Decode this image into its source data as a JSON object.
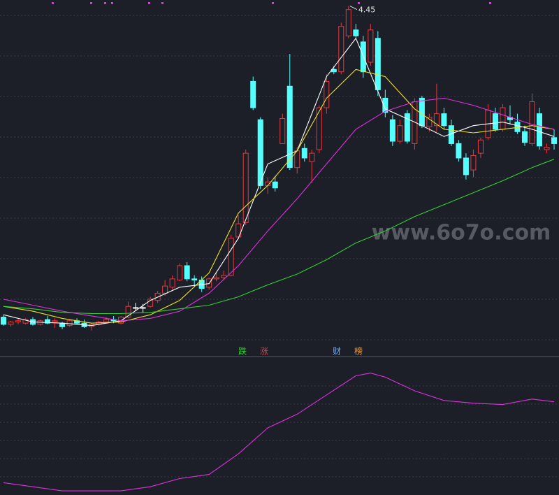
{
  "chart_data": [
    {
      "type": "candlestick",
      "ylim": [
        1.55,
        4.5
      ],
      "up_color": "#e8383d",
      "down_color": "#54ffff",
      "flat_color": "#ffffff",
      "open": [
        1.85,
        1.79,
        1.81,
        1.8,
        1.83,
        1.79,
        1.83,
        1.81,
        1.8,
        1.78,
        1.82,
        1.8,
        1.77,
        1.79,
        1.81,
        1.83,
        1.8,
        1.85,
        1.93,
        1.93,
        1.94,
        1.99,
        2.05,
        2.1,
        2.16,
        2.28,
        2.17,
        2.16,
        2.1,
        2.17,
        2.18,
        2.2,
        2.52,
        2.64,
        3.82,
        3.5,
        2.95,
        2.98,
        3.3,
        3.78,
        3.1,
        3.26,
        3.15,
        3.25,
        3.6,
        3.92,
        3.9,
        4.2,
        4.25,
        4.15,
        3.98,
        4.18,
        3.68,
        3.5,
        3.32,
        3.55,
        3.3,
        3.68,
        3.44,
        3.45,
        3.55,
        3.45,
        3.3,
        3.18,
        3.08,
        3.22,
        3.35,
        3.55,
        3.42,
        3.52,
        3.48,
        3.4,
        3.3,
        3.55,
        3.25,
        3.35
      ],
      "high": [
        1.87,
        1.82,
        1.84,
        1.84,
        1.85,
        1.83,
        1.86,
        1.84,
        1.81,
        1.83,
        1.84,
        1.83,
        1.8,
        1.82,
        1.85,
        1.86,
        1.86,
        1.98,
        1.97,
        1.96,
        2.02,
        2.07,
        2.16,
        2.2,
        2.3,
        2.31,
        2.2,
        2.19,
        2.18,
        2.22,
        2.24,
        2.54,
        2.7,
        3.25,
        3.86,
        3.52,
        3.02,
        3.03,
        3.55,
        4.05,
        3.27,
        3.3,
        3.25,
        3.62,
        3.88,
        3.95,
        4.31,
        4.45,
        4.3,
        4.2,
        4.3,
        4.24,
        3.75,
        3.54,
        3.5,
        3.58,
        3.68,
        3.7,
        3.55,
        3.8,
        3.6,
        3.5,
        3.33,
        3.22,
        3.25,
        3.35,
        3.63,
        3.6,
        3.63,
        3.62,
        3.55,
        3.45,
        3.72,
        3.6,
        3.3,
        3.42
      ],
      "low": [
        1.78,
        1.77,
        1.79,
        1.79,
        1.78,
        1.78,
        1.79,
        1.76,
        1.75,
        1.77,
        1.79,
        1.76,
        1.74,
        1.78,
        1.8,
        1.8,
        1.79,
        1.84,
        1.9,
        1.89,
        1.93,
        1.97,
        2.03,
        2.08,
        2.15,
        2.15,
        2.1,
        2.06,
        2.08,
        2.15,
        2.16,
        2.19,
        2.5,
        2.62,
        3.58,
        2.92,
        2.88,
        2.9,
        3.3,
        3.08,
        3.05,
        3.15,
        2.97,
        3.22,
        3.55,
        3.88,
        3.88,
        4.18,
        4.18,
        3.85,
        3.95,
        3.7,
        3.52,
        3.28,
        3.3,
        3.3,
        3.25,
        3.43,
        3.4,
        3.4,
        3.42,
        3.28,
        3.15,
        3.0,
        3.02,
        3.18,
        3.33,
        3.4,
        3.4,
        3.46,
        3.38,
        3.28,
        3.28,
        3.25,
        3.22,
        3.25
      ],
      "close": [
        1.79,
        1.81,
        1.82,
        1.83,
        1.79,
        1.82,
        1.8,
        1.82,
        1.77,
        1.82,
        1.8,
        1.77,
        1.79,
        1.81,
        1.83,
        1.82,
        1.85,
        1.94,
        1.93,
        1.93,
        2.0,
        2.05,
        2.11,
        2.17,
        2.28,
        2.17,
        2.16,
        2.09,
        2.17,
        2.18,
        2.2,
        2.51,
        2.63,
        3.22,
        3.6,
        2.95,
        2.98,
        2.93,
        3.51,
        3.1,
        3.24,
        3.18,
        3.22,
        3.6,
        3.82,
        3.9,
        4.28,
        4.42,
        4.2,
        3.9,
        4.25,
        3.75,
        3.56,
        3.32,
        3.45,
        3.32,
        3.65,
        3.45,
        3.52,
        3.55,
        3.45,
        3.3,
        3.18,
        3.04,
        3.2,
        3.33,
        3.58,
        3.42,
        3.6,
        3.5,
        3.4,
        3.31,
        3.65,
        3.28,
        3.27,
        3.3
      ],
      "series": [
        {
          "color": "#ffffff",
          "x": [
            0,
            4,
            8,
            12,
            16,
            20,
            24,
            28,
            32,
            36,
            40,
            44,
            48,
            52,
            56,
            60,
            64,
            68,
            72,
            75
          ],
          "values": [
            1.87,
            1.81,
            1.8,
            1.78,
            1.82,
            1.99,
            2.1,
            2.13,
            2.51,
            3.13,
            3.24,
            3.86,
            4.18,
            3.59,
            3.48,
            3.36,
            3.45,
            3.48,
            3.42,
            3.36
          ]
        },
        {
          "color": "#f0e020",
          "x": [
            0,
            4,
            8,
            12,
            16,
            20,
            24,
            28,
            32,
            36,
            40,
            44,
            48,
            52,
            56,
            60,
            64,
            68,
            72,
            75
          ],
          "values": [
            1.94,
            1.9,
            1.84,
            1.8,
            1.81,
            1.87,
            1.99,
            2.22,
            2.72,
            2.95,
            3.24,
            3.68,
            3.92,
            3.86,
            3.59,
            3.42,
            3.39,
            3.42,
            3.45,
            3.42
          ]
        },
        {
          "color": "#e030e0",
          "x": [
            0,
            4,
            8,
            12,
            16,
            20,
            24,
            28,
            32,
            36,
            40,
            44,
            48,
            52,
            56,
            60,
            64,
            68,
            72,
            75
          ],
          "values": [
            2.0,
            1.95,
            1.9,
            1.86,
            1.82,
            1.84,
            1.9,
            2.05,
            2.28,
            2.57,
            2.84,
            3.13,
            3.42,
            3.57,
            3.65,
            3.68,
            3.62,
            3.54,
            3.46,
            3.42
          ]
        },
        {
          "color": "#30d030",
          "x": [
            0,
            4,
            8,
            12,
            16,
            20,
            24,
            28,
            32,
            36,
            40,
            44,
            48,
            52,
            56,
            60,
            64,
            68,
            72,
            75
          ],
          "values": [
            1.94,
            1.92,
            1.89,
            1.88,
            1.88,
            1.89,
            1.92,
            1.95,
            2.02,
            2.12,
            2.21,
            2.33,
            2.47,
            2.57,
            2.69,
            2.79,
            2.89,
            2.99,
            3.1,
            3.17
          ]
        }
      ],
      "annotations": [
        {
          "label": "4.45",
          "value": 4.45,
          "x": 47
        }
      ],
      "markers": [
        {
          "text": "跌",
          "color": "#30d030"
        },
        {
          "text": "涨",
          "color": "#e8383d"
        },
        {
          "text": "财",
          "color": "#6aa8ff"
        },
        {
          "text": "榜",
          "color": "#f0a030"
        }
      ]
    },
    {
      "type": "line",
      "ylim": [
        0,
        100
      ],
      "series": [
        {
          "color": "#e030e0",
          "x": [
            0,
            4,
            8,
            12,
            16,
            20,
            24,
            28,
            32,
            36,
            40,
            44,
            48,
            50,
            52,
            56,
            60,
            64,
            68,
            72,
            75
          ],
          "values": [
            9,
            6,
            3,
            3,
            3,
            6,
            12,
            15,
            30,
            49,
            59,
            73,
            87,
            89,
            86,
            76,
            69,
            67,
            66,
            70,
            68
          ]
        }
      ]
    }
  ],
  "watermark": "www.6o7o.com"
}
